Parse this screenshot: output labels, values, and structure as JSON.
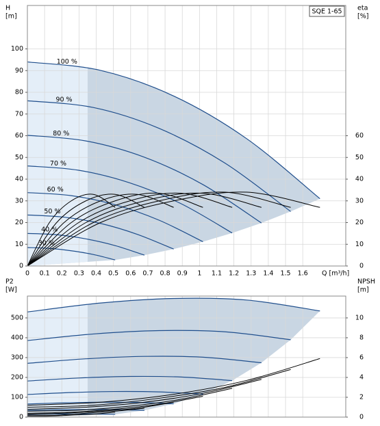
{
  "chart_data": [
    {
      "type": "line",
      "title": "SQE 1-65",
      "ylabel": [
        "H",
        "[m]"
      ],
      "y2label": [
        "eta",
        "[%]"
      ],
      "xlabel": "Q [m³/h]",
      "xlim": [
        0,
        1.85
      ],
      "xticks": [
        0,
        0.1,
        0.2,
        0.3,
        0.4,
        0.5,
        0.6,
        0.7,
        0.8,
        0.9,
        1,
        1.1,
        1.2,
        1.3,
        1.4,
        1.5,
        1.6
      ],
      "x_tick_labels": true,
      "ylim": [
        0,
        120
      ],
      "yticks": [
        0,
        10,
        20,
        30,
        40,
        50,
        60,
        70,
        80,
        90,
        100
      ],
      "y2lim": [
        0,
        120
      ],
      "y2ticks": [
        0,
        10,
        20,
        30,
        40,
        50,
        60
      ],
      "grid": true,
      "region_color": "#c9d6e3",
      "band_color": "#e4eef8",
      "band_xlim": [
        0,
        0.35
      ],
      "series": [
        {
          "name": "100 %",
          "color": "#1f4e8c",
          "x": [
            0,
            0.425,
            0.85,
            1.275,
            1.7
          ],
          "values": [
            94,
            90.1,
            78.3,
            58.6,
            31
          ]
        },
        {
          "name": "90 %",
          "color": "#1f4e8c",
          "x": [
            0,
            0.383,
            0.765,
            1.148,
            1.53
          ],
          "values": [
            76.1,
            73.0,
            63.4,
            47.4,
            25.1
          ]
        },
        {
          "name": "80 %",
          "color": "#1f4e8c",
          "x": [
            0,
            0.34,
            0.68,
            1.02,
            1.36
          ],
          "values": [
            60.2,
            57.6,
            50.1,
            37.5,
            19.8
          ]
        },
        {
          "name": "70 %",
          "color": "#1f4e8c",
          "x": [
            0,
            0.298,
            0.595,
            0.893,
            1.19
          ],
          "values": [
            46.1,
            44.1,
            38.3,
            28.7,
            15.2
          ]
        },
        {
          "name": "60 %",
          "color": "#1f4e8c",
          "x": [
            0,
            0.255,
            0.51,
            0.765,
            1.02
          ],
          "values": [
            33.8,
            32.4,
            28.2,
            21.1,
            11.2
          ]
        },
        {
          "name": "50 %",
          "color": "#1f4e8c",
          "x": [
            0,
            0.213,
            0.425,
            0.638,
            0.85
          ],
          "values": [
            23.5,
            22.5,
            19.6,
            14.6,
            7.8
          ]
        },
        {
          "name": "40 %",
          "color": "#1f4e8c",
          "x": [
            0,
            0.17,
            0.34,
            0.51,
            0.68
          ],
          "values": [
            15.0,
            14.4,
            12.5,
            9.4,
            5.0
          ]
        },
        {
          "name": "30 %",
          "color": "#1f4e8c",
          "x": [
            0,
            0.128,
            0.255,
            0.383,
            0.51
          ],
          "values": [
            8.5,
            8.1,
            7.0,
            5.3,
            2.8
          ]
        },
        {
          "axis": "y2",
          "color": "#000000",
          "x": [
            0,
            0.425,
            0.85,
            1.275,
            1.7
          ],
          "values": [
            0,
            20,
            30,
            34,
            27
          ]
        },
        {
          "axis": "y2",
          "color": "#000000",
          "x": [
            0,
            0.383,
            0.765,
            1.148,
            1.53
          ],
          "values": [
            0,
            20,
            30,
            34,
            27
          ]
        },
        {
          "axis": "y2",
          "color": "#000000",
          "x": [
            0,
            0.34,
            0.68,
            1.02,
            1.36
          ],
          "values": [
            0,
            20,
            30,
            33.5,
            27
          ]
        },
        {
          "axis": "y2",
          "color": "#000000",
          "x": [
            0,
            0.298,
            0.595,
            0.893,
            1.19
          ],
          "values": [
            0,
            20,
            30,
            33.5,
            27
          ]
        },
        {
          "axis": "y2",
          "color": "#000000",
          "x": [
            0,
            0.255,
            0.51,
            0.765,
            1.02
          ],
          "values": [
            0,
            20,
            30,
            33.5,
            27
          ]
        },
        {
          "axis": "y2",
          "color": "#000000",
          "x": [
            0,
            0.213,
            0.425,
            0.638,
            0.85
          ],
          "values": [
            0,
            20,
            30,
            33,
            27
          ]
        },
        {
          "axis": "y2",
          "color": "#000000",
          "x": [
            0,
            0.17,
            0.34,
            0.51,
            0.68
          ],
          "values": [
            0,
            20,
            30,
            33,
            27
          ]
        },
        {
          "axis": "y2",
          "color": "#000000",
          "x": [
            0,
            0.128,
            0.255,
            0.383,
            0.51
          ],
          "values": [
            0,
            20,
            30,
            33,
            27
          ]
        }
      ]
    },
    {
      "type": "line",
      "ylabel": [
        "P2",
        "[W]"
      ],
      "y2label": [
        "NPSH",
        "[m]"
      ],
      "xlim": [
        0,
        1.85
      ],
      "xticks": [
        0,
        0.1,
        0.2,
        0.3,
        0.4,
        0.5,
        0.6,
        0.7,
        0.8,
        0.9,
        1,
        1.1,
        1.2,
        1.3,
        1.4,
        1.5,
        1.6
      ],
      "x_tick_labels": false,
      "ylim": [
        0,
        610
      ],
      "yticks": [
        0,
        100,
        200,
        300,
        400,
        500
      ],
      "y2lim": [
        0,
        12.2
      ],
      "y2ticks": [
        0,
        2,
        4,
        6,
        8,
        10
      ],
      "grid": true,
      "region_color": "#c9d6e3",
      "band_color": "#e4eef8",
      "band_xlim": [
        0,
        0.35
      ],
      "series": [
        {
          "color": "#1f4e8c",
          "x": [
            0,
            0.425,
            0.85,
            1.275,
            1.7
          ],
          "values": [
            530,
            575,
            598,
            590,
            535
          ]
        },
        {
          "color": "#1f4e8c",
          "x": [
            0,
            0.383,
            0.765,
            1.148,
            1.53
          ],
          "values": [
            386,
            419,
            436,
            430,
            390
          ]
        },
        {
          "color": "#1f4e8c",
          "x": [
            0,
            0.34,
            0.68,
            1.02,
            1.36
          ],
          "values": [
            271,
            294,
            306,
            302,
            274
          ]
        },
        {
          "color": "#1f4e8c",
          "x": [
            0,
            0.298,
            0.595,
            0.893,
            1.19
          ],
          "values": [
            182,
            197,
            205,
            202,
            184
          ]
        },
        {
          "color": "#1f4e8c",
          "x": [
            0,
            0.255,
            0.51,
            0.765,
            1.02
          ],
          "values": [
            114,
            124,
            129,
            127,
            116
          ]
        },
        {
          "color": "#1f4e8c",
          "x": [
            0,
            0.213,
            0.425,
            0.638,
            0.85
          ],
          "values": [
            66,
            72,
            75,
            74,
            67
          ]
        },
        {
          "color": "#1f4e8c",
          "x": [
            0,
            0.17,
            0.34,
            0.51,
            0.68
          ],
          "values": [
            34,
            37,
            38,
            38,
            34
          ]
        },
        {
          "color": "#1f4e8c",
          "x": [
            0,
            0.128,
            0.255,
            0.383,
            0.51
          ],
          "values": [
            14,
            16,
            16,
            16,
            14
          ]
        },
        {
          "axis": "y2",
          "color": "#000000",
          "x": [
            0,
            0.425,
            0.85,
            1.275,
            1.7
          ],
          "values": [
            1.2,
            1.5,
            2.3,
            3.7,
            5.9
          ]
        },
        {
          "axis": "y2",
          "color": "#000000",
          "x": [
            0,
            0.383,
            0.765,
            1.148,
            1.53
          ],
          "values": [
            1.0,
            1.2,
            1.9,
            3.0,
            4.8
          ]
        },
        {
          "axis": "y2",
          "color": "#000000",
          "x": [
            0,
            0.34,
            0.68,
            1.02,
            1.36
          ],
          "values": [
            0.8,
            1.0,
            1.5,
            2.4,
            3.8
          ]
        },
        {
          "axis": "y2",
          "color": "#000000",
          "x": [
            0,
            0.298,
            0.595,
            0.893,
            1.19
          ],
          "values": [
            0.6,
            0.7,
            1.1,
            1.8,
            2.9
          ]
        },
        {
          "axis": "y2",
          "color": "#000000",
          "x": [
            0,
            0.255,
            0.51,
            0.765,
            1.02
          ],
          "values": [
            0.4,
            0.5,
            0.8,
            1.3,
            2.1
          ]
        },
        {
          "axis": "y2",
          "color": "#000000",
          "x": [
            0,
            0.213,
            0.425,
            0.638,
            0.85
          ],
          "values": [
            0.3,
            0.4,
            0.6,
            0.9,
            1.5
          ]
        },
        {
          "axis": "y2",
          "color": "#000000",
          "x": [
            0,
            0.17,
            0.34,
            0.51,
            0.68
          ],
          "values": [
            0.2,
            0.2,
            0.4,
            0.6,
            0.9
          ]
        },
        {
          "axis": "y2",
          "color": "#000000",
          "x": [
            0,
            0.128,
            0.255,
            0.383,
            0.51
          ],
          "values": [
            0.1,
            0.1,
            0.2,
            0.3,
            0.5
          ]
        }
      ]
    }
  ]
}
